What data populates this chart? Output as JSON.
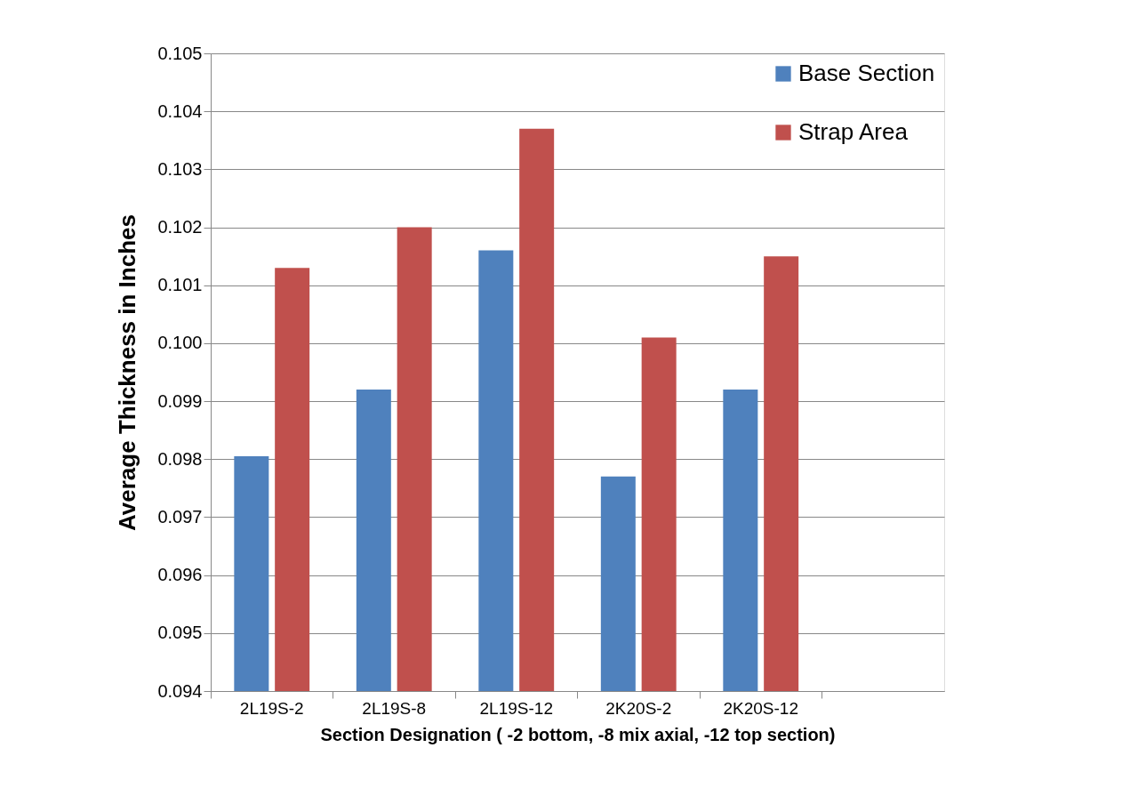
{
  "chart_data": {
    "type": "bar",
    "xlabel": "Section Designation ( -2 bottom, -8 mix axial, -12 top section)",
    "ylabel": "Average Thickness in Inches",
    "categories": [
      "2L19S-2",
      "2L19S-8",
      "2L19S-12",
      "2K20S-2",
      "2K20S-12",
      null
    ],
    "series": [
      {
        "name": "Base Section",
        "color": "#4f81bd",
        "values": [
          0.09805,
          0.0992,
          0.1016,
          0.0977,
          0.0992,
          null
        ]
      },
      {
        "name": "Strap Area",
        "color": "#c0504d",
        "values": [
          0.1013,
          0.102,
          0.1037,
          0.1001,
          0.1015,
          null
        ]
      }
    ],
    "ylim": [
      0.094,
      0.105
    ],
    "yticks": [
      0.094,
      0.095,
      0.096,
      0.097,
      0.098,
      0.099,
      {
        "value": 0.1,
        "label": "0.100"
      },
      0.101,
      0.102,
      0.103,
      0.104,
      0.105
    ],
    "grid": "y",
    "legend": "top right"
  }
}
